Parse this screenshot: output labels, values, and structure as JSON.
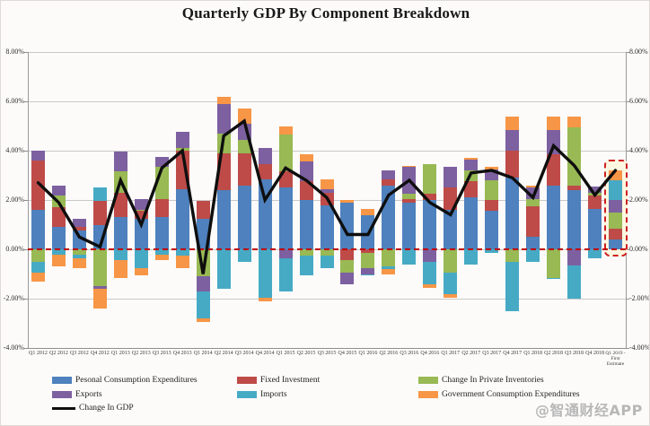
{
  "watermark": {
    "text": "@智通财经APP"
  },
  "chart_data": {
    "type": "bar",
    "subtype": "stacked-bar-with-line-overlay",
    "title": "Quarterly GDP By Component Breakdown",
    "xlabel": "",
    "ylabel": "",
    "ylim": [
      -4,
      8
    ],
    "grid": true,
    "legend_position": "bottom-left",
    "yticks": [
      "8.00%",
      "6.00%",
      "4.00%",
      "2.00%",
      "0.00%",
      "-2.00%",
      "-4.00%"
    ],
    "ytick_values": [
      8,
      6,
      4,
      2,
      0,
      -2,
      -4
    ],
    "zero_line_style": "dashed-red",
    "categories": [
      "Q1 2012",
      "Q2 2012",
      "Q3 2012",
      "Q4 2012",
      "Q1 2013",
      "Q2 2013",
      "Q3 2013",
      "Q4 2013",
      "Q1 2014",
      "Q2 2014",
      "Q3 2014",
      "Q4 2014",
      "Q1 2015",
      "Q2 2015",
      "Q3 2015",
      "Q4 2015",
      "Q1 2016",
      "Q2 2016",
      "Q3 2016",
      "Q4 2016",
      "Q1 2017",
      "Q2 2017",
      "Q3 2017",
      "Q4 2017",
      "Q1 2018",
      "Q2 2018",
      "Q3 2018",
      "Q4 2018",
      "Q1 2019 - First Estimate"
    ],
    "series": [
      {
        "name": "Pesonal Consumption Expenditures",
        "color": "#4E81BD",
        "values": [
          1.6,
          0.9,
          0.75,
          1.0,
          1.3,
          1.25,
          1.3,
          2.45,
          1.25,
          2.4,
          2.6,
          2.85,
          2.5,
          2.0,
          1.8,
          1.9,
          1.4,
          2.6,
          1.9,
          2.0,
          1.6,
          2.1,
          1.55,
          2.9,
          0.5,
          2.6,
          2.4,
          1.65,
          0.4
        ]
      },
      {
        "name": "Fixed Investment",
        "color": "#BE4B48",
        "values": [
          2.0,
          0.8,
          0.15,
          0.95,
          1.0,
          0.3,
          0.75,
          1.55,
          0.7,
          1.5,
          1.3,
          0.6,
          0.65,
          0.75,
          0.5,
          -0.45,
          -0.15,
          0.25,
          0.15,
          0.25,
          0.9,
          0.65,
          0.45,
          1.1,
          1.25,
          1.25,
          0.2,
          0.55,
          0.45
        ]
      },
      {
        "name": "Change In Private Inventories",
        "color": "#98B954",
        "values": [
          -0.5,
          0.5,
          -0.2,
          -1.5,
          0.85,
          0.05,
          1.3,
          0.1,
          -1.1,
          0.8,
          0.55,
          0.0,
          1.5,
          -0.25,
          -0.25,
          -0.5,
          -0.6,
          -0.7,
          0.2,
          1.2,
          -0.95,
          0.45,
          0.8,
          -0.5,
          0.3,
          -1.15,
          2.35,
          0.1,
          0.65
        ]
      },
      {
        "name": "Exports",
        "color": "#7D60A0",
        "values": [
          0.4,
          0.4,
          0.35,
          -0.1,
          0.8,
          0.45,
          0.4,
          0.65,
          -0.6,
          1.2,
          0.65,
          0.65,
          -0.35,
          0.8,
          0.15,
          -0.45,
          -0.25,
          0.35,
          1.1,
          -0.5,
          0.85,
          0.45,
          0.45,
          0.85,
          0.45,
          1.0,
          -0.65,
          0.25,
          0.5
        ]
      },
      {
        "name": "Imports",
        "color": "#46AAC5",
        "values": [
          -0.45,
          -0.2,
          -0.15,
          0.55,
          -0.45,
          -0.75,
          -0.2,
          -0.25,
          -1.1,
          -1.6,
          -0.5,
          -1.95,
          -1.35,
          -0.8,
          -0.5,
          0.0,
          -0.05,
          -0.1,
          -0.6,
          -0.9,
          -0.85,
          -0.6,
          -0.15,
          -2.0,
          -0.5,
          -0.05,
          -1.35,
          -0.35,
          0.8
        ]
      },
      {
        "name": "Government Consumption Expenditures",
        "color": "#F79646",
        "values": [
          -0.35,
          -0.5,
          -0.4,
          -0.8,
          -0.7,
          -0.3,
          -0.25,
          -0.5,
          -0.15,
          0.3,
          0.6,
          -0.15,
          0.35,
          0.3,
          0.4,
          0.1,
          0.25,
          -0.2,
          0.05,
          -0.15,
          -0.15,
          0.05,
          0.1,
          0.55,
          0.1,
          0.55,
          0.45,
          0.0,
          0.4
        ]
      }
    ],
    "line_series": {
      "name": "Change In GDP",
      "color": "#0e0e0e",
      "values": [
        2.7,
        1.9,
        0.5,
        0.1,
        2.8,
        1.0,
        3.3,
        4.0,
        -1.0,
        4.6,
        5.2,
        2.0,
        3.3,
        2.8,
        2.1,
        0.6,
        0.6,
        2.2,
        2.8,
        1.9,
        1.4,
        3.1,
        3.2,
        2.9,
        2.1,
        4.2,
        3.4,
        2.2,
        3.2
      ]
    },
    "highlight": {
      "index": 28,
      "style": "red-dashed-box",
      "fill": "#fcf7e0",
      "border": "#cd2020"
    },
    "colors": {
      "zero_line": "#c00000",
      "gridline": "#c9c9c9",
      "axis": "#9a9a9a"
    }
  }
}
